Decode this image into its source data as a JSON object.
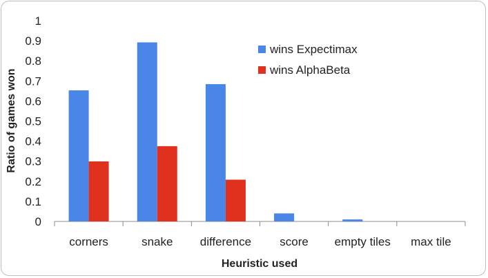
{
  "chart_data": {
    "type": "bar",
    "xlabel": "Heuristic used",
    "ylabel": "Ratio of games won",
    "categories": [
      "corners",
      "snake",
      "difference",
      "score",
      "empty tiles",
      "max tile"
    ],
    "series": [
      {
        "name": "wins Expectimax",
        "color": "#4a86e8",
        "values": [
          0.653,
          0.892,
          0.684,
          0.04,
          0.01,
          0
        ]
      },
      {
        "name": "wins AlphaBeta",
        "color": "#e0301e",
        "values": [
          0.299,
          0.375,
          0.208,
          0,
          0,
          0
        ]
      }
    ],
    "ylim": [
      0,
      1
    ],
    "yticks": [
      "0",
      "0.1",
      "0.2",
      "0.3",
      "0.4",
      "0.5",
      "0.6",
      "0.7",
      "0.8",
      "0.9",
      "1"
    ],
    "grid": false,
    "legend_position": "top-right"
  }
}
